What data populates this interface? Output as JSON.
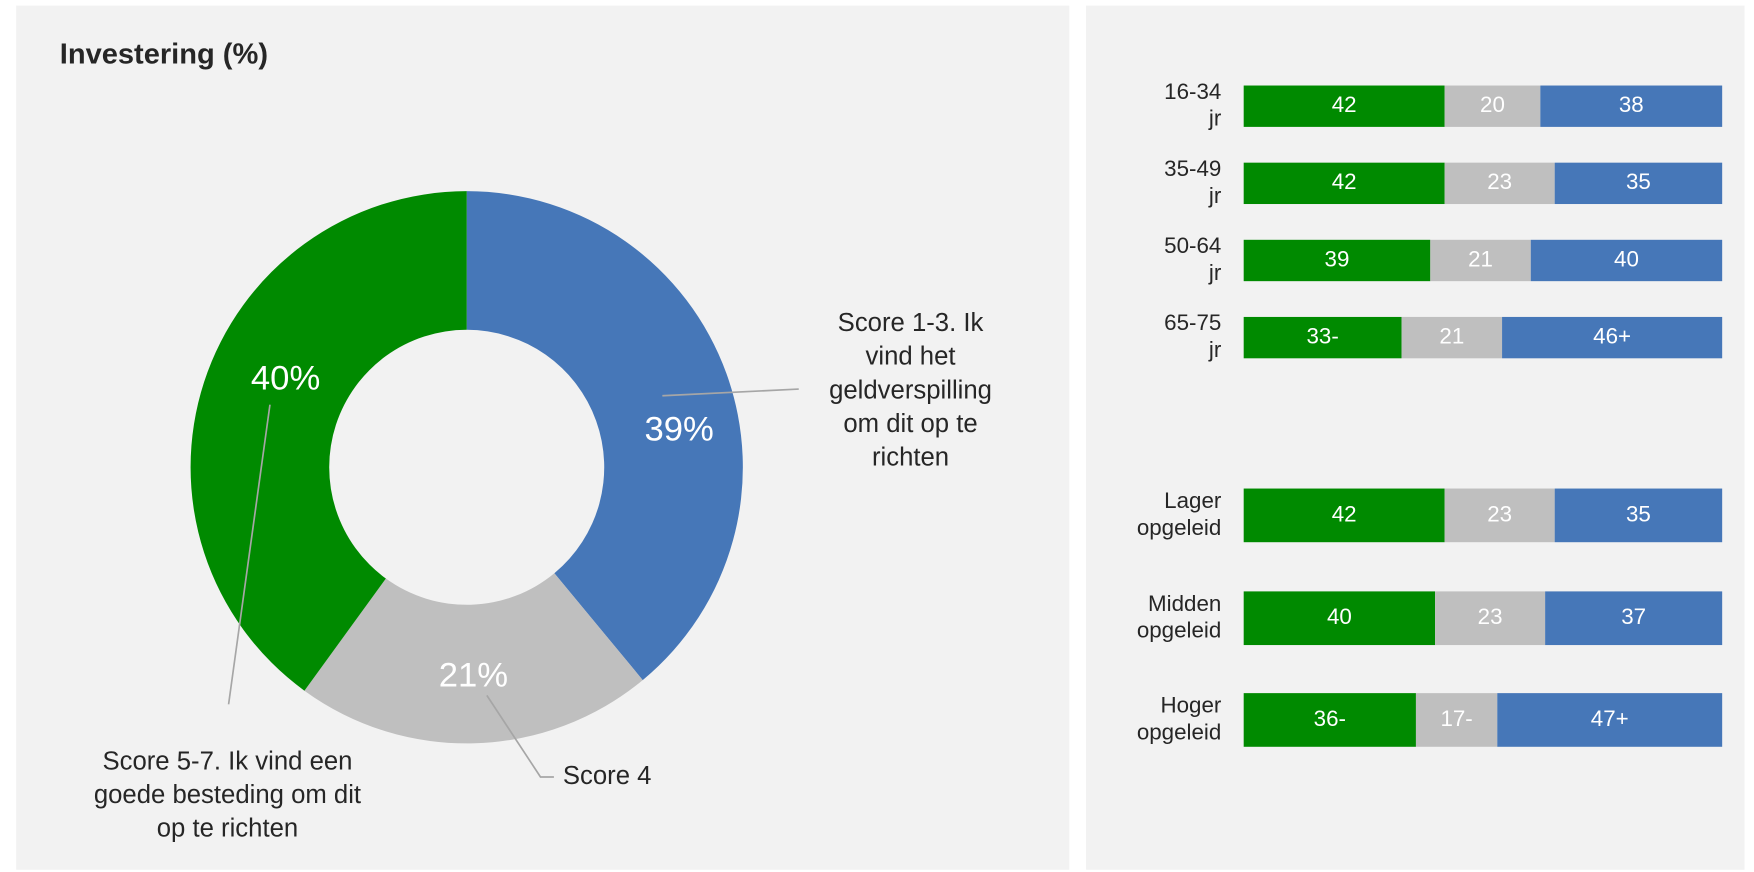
{
  "chart_data": [
    {
      "type": "pie",
      "title": "Investering (%)",
      "donut": true,
      "categories": [
        "Score 1-3. Ik vind het geldverspilling om dit op te richten",
        "Score 4",
        "Score 5-7. Ik vind een goede besteding om dit op te richten"
      ],
      "values": [
        39,
        21,
        40
      ],
      "value_labels": [
        "39%",
        "21%",
        "40%"
      ],
      "colors": [
        "#4677b8",
        "#bfbfbf",
        "#008a00"
      ]
    },
    {
      "type": "stacked-barh",
      "categories": [
        "16-34 jr",
        "35-49 jr",
        "50-64 jr",
        "65-75 jr"
      ],
      "series": [
        {
          "color": "#008a00",
          "values": [
            42,
            42,
            39,
            33
          ],
          "value_labels": [
            "42",
            "42",
            "39",
            "33-"
          ]
        },
        {
          "color": "#bfbfbf",
          "values": [
            20,
            23,
            21,
            21
          ],
          "value_labels": [
            "20",
            "23",
            "21",
            "21"
          ]
        },
        {
          "color": "#4677b8",
          "values": [
            38,
            35,
            40,
            46
          ],
          "value_labels": [
            "38",
            "35",
            "40",
            "46+"
          ]
        }
      ]
    },
    {
      "type": "stacked-barh",
      "categories": [
        "Lager opgeleid",
        "Midden opgeleid",
        "Hoger opgeleid"
      ],
      "series": [
        {
          "color": "#008a00",
          "values": [
            42,
            40,
            36
          ],
          "value_labels": [
            "42",
            "40",
            "36-"
          ]
        },
        {
          "color": "#bfbfbf",
          "values": [
            23,
            23,
            17
          ],
          "value_labels": [
            "23",
            "23",
            "17-"
          ]
        },
        {
          "color": "#4677b8",
          "values": [
            35,
            37,
            47
          ],
          "value_labels": [
            "35",
            "37",
            "47+"
          ]
        }
      ]
    }
  ]
}
